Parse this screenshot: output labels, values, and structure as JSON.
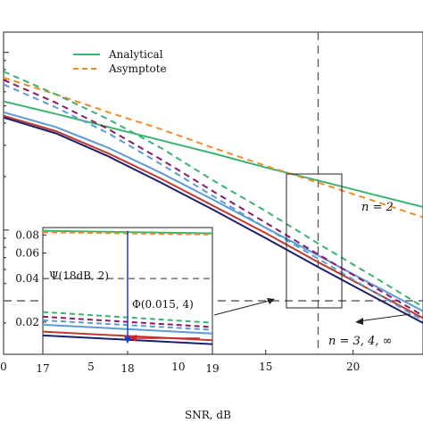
{
  "chart_data": {
    "type": "line",
    "xlabel": "SNR, dB",
    "xlim": [
      0,
      24
    ],
    "x_ticks": [
      0,
      5,
      10,
      15,
      20
    ],
    "y_scale": "log",
    "legend": [
      {
        "label": "Analytical",
        "style": "solid",
        "color": "#3cb371"
      },
      {
        "label": "Asymptote",
        "style": "dashed",
        "color": "#f28c28"
      }
    ],
    "legend_placement": "top-left",
    "series": [
      {
        "style": "solid",
        "color": "#3cb371",
        "x": [
          0,
          3,
          6,
          9,
          12,
          15,
          18,
          21,
          24
        ],
        "y": [
          0.53,
          0.45,
          0.38,
          0.32,
          0.27,
          0.225,
          0.19,
          0.16,
          0.135
        ]
      },
      {
        "style": "dashed",
        "color": "#f28c28",
        "x": [
          0,
          3,
          6,
          9,
          12,
          15,
          18,
          21,
          24
        ],
        "y": [
          0.72,
          0.58,
          0.46,
          0.37,
          0.29,
          0.23,
          0.185,
          0.148,
          0.118
        ]
      },
      {
        "style": "solid",
        "color": "#5b9bd5",
        "x": [
          0,
          3,
          6,
          9,
          12,
          15,
          18,
          21,
          24
        ],
        "y": [
          0.46,
          0.38,
          0.29,
          0.21,
          0.148,
          0.103,
          0.072,
          0.05,
          0.035
        ]
      },
      {
        "style": "solid",
        "color": "#c0392b",
        "x": [
          0,
          3,
          6,
          9,
          12,
          15,
          18,
          21,
          24
        ],
        "y": [
          0.44,
          0.36,
          0.27,
          0.195,
          0.137,
          0.096,
          0.066,
          0.046,
          0.032
        ]
      },
      {
        "style": "solid",
        "color": "#1a1f6e",
        "x": [
          0,
          3,
          6,
          9,
          12,
          15,
          18,
          21,
          24
        ],
        "y": [
          0.43,
          0.35,
          0.26,
          0.185,
          0.13,
          0.09,
          0.062,
          0.043,
          0.03
        ]
      },
      {
        "style": "dashed",
        "color": "#3cb371",
        "x": [
          0,
          3,
          6,
          9,
          12,
          15,
          18,
          21,
          24
        ],
        "y": [
          0.78,
          0.58,
          0.42,
          0.29,
          0.19,
          0.128,
          0.084,
          0.056,
          0.037
        ]
      },
      {
        "style": "dashed",
        "color": "#8b1a6b",
        "x": [
          0,
          3,
          6,
          9,
          12,
          15,
          18,
          21,
          24
        ],
        "y": [
          0.7,
          0.52,
          0.37,
          0.25,
          0.165,
          0.11,
          0.073,
          0.049,
          0.033
        ]
      },
      {
        "style": "dashed",
        "color": "#5b9bd5",
        "x": [
          0,
          3,
          6,
          9,
          12,
          15,
          18,
          21,
          24
        ],
        "y": [
          0.66,
          0.49,
          0.35,
          0.235,
          0.155,
          0.103,
          0.069,
          0.046,
          0.031
        ]
      }
    ],
    "reference_lines": [
      {
        "orientation": "vertical",
        "x": 18,
        "style": "dashed"
      },
      {
        "orientation": "horizontal",
        "y": 0.04,
        "style": "dashed"
      }
    ],
    "inset": {
      "xlim": [
        17,
        19
      ],
      "x_ticks": [
        17,
        18,
        19
      ],
      "y_ticks": [
        0.02,
        0.04,
        0.06,
        0.08
      ],
      "y_tick_labels": [
        "0.02",
        "0.04",
        "0.06",
        "0.08"
      ],
      "ylim": [
        0.012,
        0.09
      ],
      "horizontal_ref_y": 0.04,
      "marker_x": 18
    },
    "annotations": [
      {
        "text": "n = 2"
      },
      {
        "text": "n = 3, 4, ∞"
      },
      {
        "text": "Ψ(18dB, 2)"
      },
      {
        "text": "Φ(0.015, 4)"
      }
    ]
  }
}
